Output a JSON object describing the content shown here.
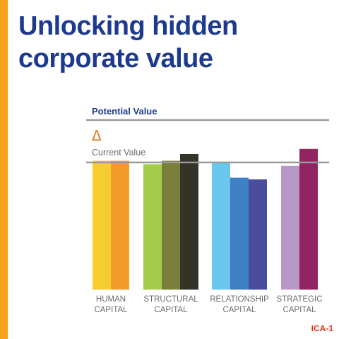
{
  "slide": {
    "title_line1": "Unlocking hidden",
    "title_line2": "corporate value",
    "tag": "ICA-1"
  },
  "colors": {
    "accent_bar": "#f7a21b",
    "title": "#1d3a8f",
    "tag": "#e0321e",
    "delta": "#e07a1e",
    "ref_line": "#9a9a9a"
  },
  "chart_data": {
    "type": "bar",
    "title": "",
    "reference_lines": [
      {
        "label": "Potential Value",
        "value": 100
      },
      {
        "label": "Current Value",
        "value": 75
      }
    ],
    "delta_symbol": "Δ",
    "ylim": [
      0,
      100
    ],
    "groups": [
      {
        "label_line1": "HUMAN",
        "label_line2": "CAPITAL",
        "bars": [
          {
            "value": 76,
            "color": "#f6cd2f"
          },
          {
            "value": 76,
            "color": "#f29c2b"
          }
        ]
      },
      {
        "label_line1": "STRUCTURAL",
        "label_line2": "CAPITAL",
        "bars": [
          {
            "value": 74,
            "color": "#a3cc48"
          },
          {
            "value": 76,
            "color": "#7b7e3a"
          },
          {
            "value": 80,
            "color": "#333326"
          }
        ]
      },
      {
        "label_line1": "RELATIONSHIP",
        "label_line2": "CAPITAL",
        "bars": [
          {
            "value": 75,
            "color": "#6cc7ee"
          },
          {
            "value": 66,
            "color": "#3f7fc3"
          },
          {
            "value": 65,
            "color": "#4a4c9c"
          }
        ]
      },
      {
        "label_line1": "STRATEGIC",
        "label_line2": "CAPITAL",
        "bars": [
          {
            "value": 73,
            "color": "#b697c6"
          },
          {
            "value": 83,
            "color": "#922463"
          }
        ]
      }
    ]
  }
}
